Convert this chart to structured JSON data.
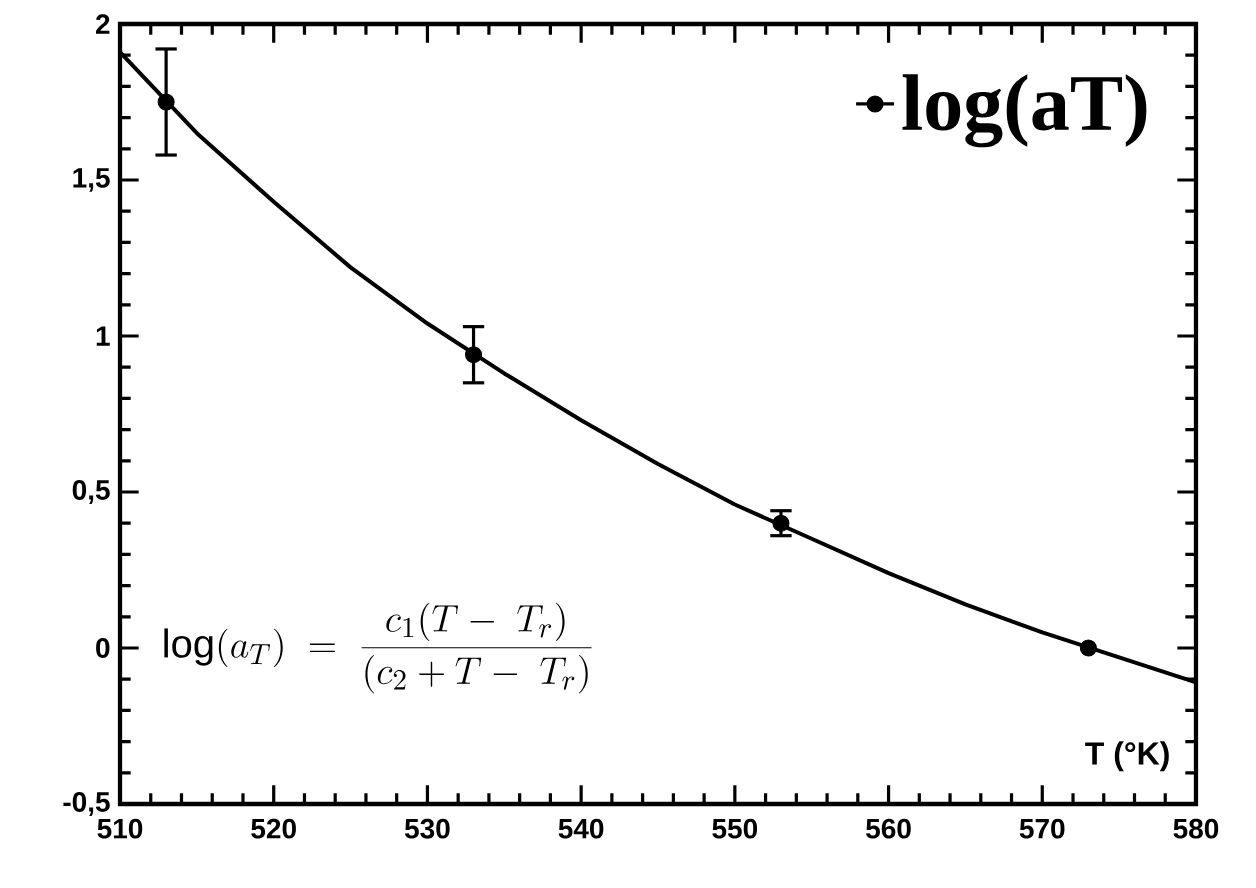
{
  "chart_data": {
    "type": "line",
    "xlabel": "T (°K)",
    "xlim": [
      510,
      580
    ],
    "ylim": [
      -0.5,
      2
    ],
    "xticks": [
      510,
      520,
      530,
      540,
      550,
      560,
      570,
      580
    ],
    "yticks": [
      {
        "value": -0.5,
        "label": "-0,5"
      },
      0,
      {
        "value": 0.5,
        "label": "0,5"
      },
      1,
      {
        "value": 1.5,
        "label": "1,5"
      },
      2
    ],
    "series": [
      {
        "name": "log(aT)",
        "type": "scatter",
        "color": "#000000",
        "marker": "circle",
        "x": [
          513,
          533,
          553,
          573
        ],
        "values": [
          1.75,
          0.94,
          0.4,
          0.0
        ],
        "errors": [
          [
            1.58,
            1.92
          ],
          [
            0.85,
            1.03
          ],
          [
            0.36,
            0.44
          ],
          null
        ]
      },
      {
        "color": "#000000",
        "x": [
          510,
          515,
          520,
          525,
          530,
          535,
          540,
          545,
          550,
          555,
          560,
          565,
          570,
          575,
          580
        ],
        "values": [
          1.91,
          1.65,
          1.43,
          1.22,
          1.04,
          0.88,
          0.73,
          0.59,
          0.46,
          0.35,
          0.24,
          0.14,
          0.05,
          -0.03,
          -0.11
        ]
      }
    ],
    "legend": "top right",
    "grid": false,
    "annotations": [
      "\\log(a_T) \\;=\\; \\frac{c_1(T-\\;T_r)}{(c_2+T-\\;T_r)}"
    ]
  }
}
